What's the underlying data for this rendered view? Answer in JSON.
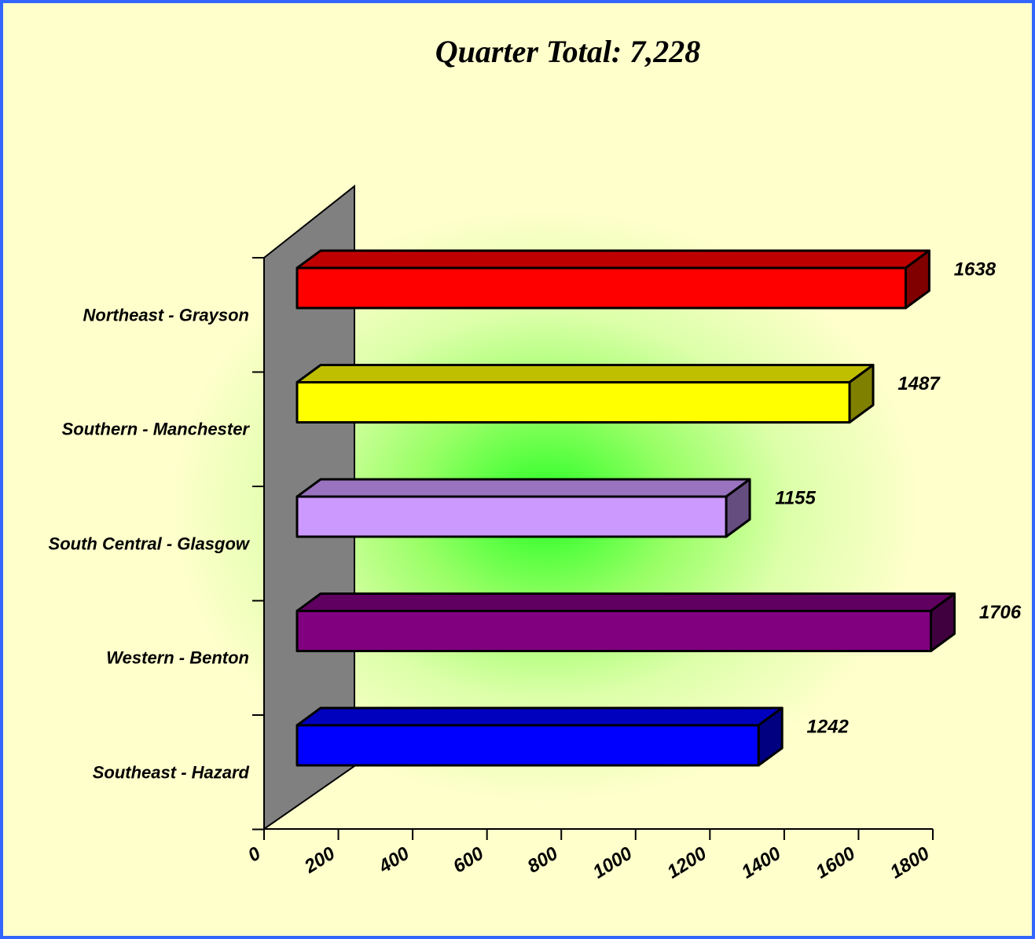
{
  "chart_data": {
    "type": "bar3d_horizontal",
    "title": "Quarter Total: 7,228",
    "categories": [
      "Northeast - Grayson",
      "Southern - Manchester",
      "South Central - Glasgow",
      "Western - Benton",
      "Southeast - Hazard"
    ],
    "values": [
      1638,
      1487,
      1155,
      1706,
      1242
    ],
    "colors": [
      "#ff0000",
      "#ffff00",
      "#cc99ff",
      "#800080",
      "#0000ff"
    ],
    "xlim": [
      0,
      1800
    ],
    "xticks": [
      0,
      200,
      400,
      600,
      800,
      1000,
      1200,
      1400,
      1600,
      1800
    ]
  }
}
